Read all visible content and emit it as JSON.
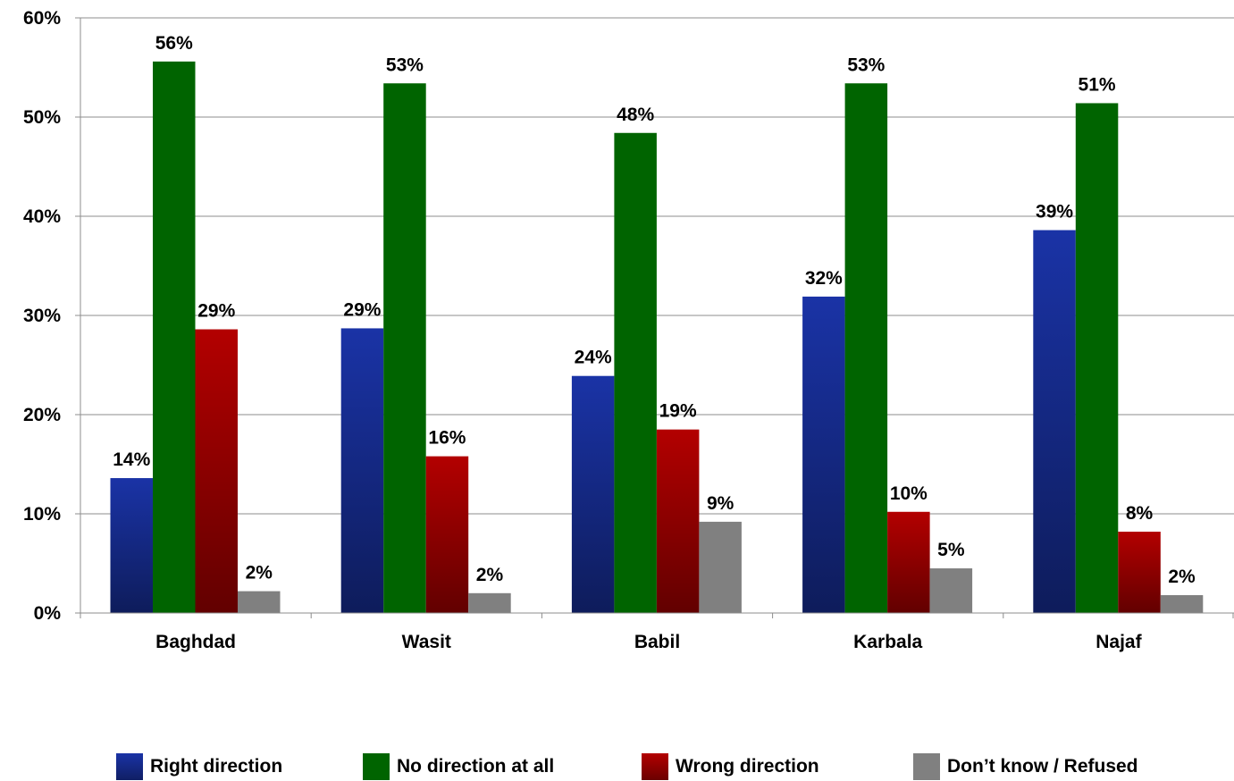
{
  "chart_data": {
    "type": "bar",
    "categories": [
      "Baghdad",
      "Wasit",
      "Babil",
      "Karbala",
      "Najaf"
    ],
    "series": [
      {
        "name": "Right direction",
        "values": [
          13.6,
          28.7,
          23.9,
          31.9,
          38.6
        ],
        "labels": [
          "14%",
          "29%",
          "24%",
          "32%",
          "39%"
        ],
        "color": "#1a33a6"
      },
      {
        "name": "No direction at all",
        "values": [
          55.6,
          53.4,
          48.4,
          53.4,
          51.4
        ],
        "labels": [
          "56%",
          "53%",
          "48%",
          "53%",
          "51%"
        ],
        "color": "#006400"
      },
      {
        "name": "Wrong direction",
        "values": [
          28.6,
          15.8,
          18.5,
          10.2,
          8.2
        ],
        "labels": [
          "29%",
          "16%",
          "19%",
          "10%",
          "8%"
        ],
        "color": "#b30000"
      },
      {
        "name": "Don’t know / Refused",
        "values": [
          2.2,
          2.0,
          9.2,
          4.5,
          1.8
        ],
        "labels": [
          "2%",
          "2%",
          "9%",
          "5%",
          "2%"
        ],
        "color": "#808080"
      }
    ],
    "yticks": [
      "0%",
      "10%",
      "20%",
      "30%",
      "40%",
      "50%",
      "60%"
    ],
    "ylim": [
      0,
      60
    ],
    "title": "",
    "xlabel": "",
    "ylabel": "",
    "grid": true,
    "legend": "bottom"
  }
}
